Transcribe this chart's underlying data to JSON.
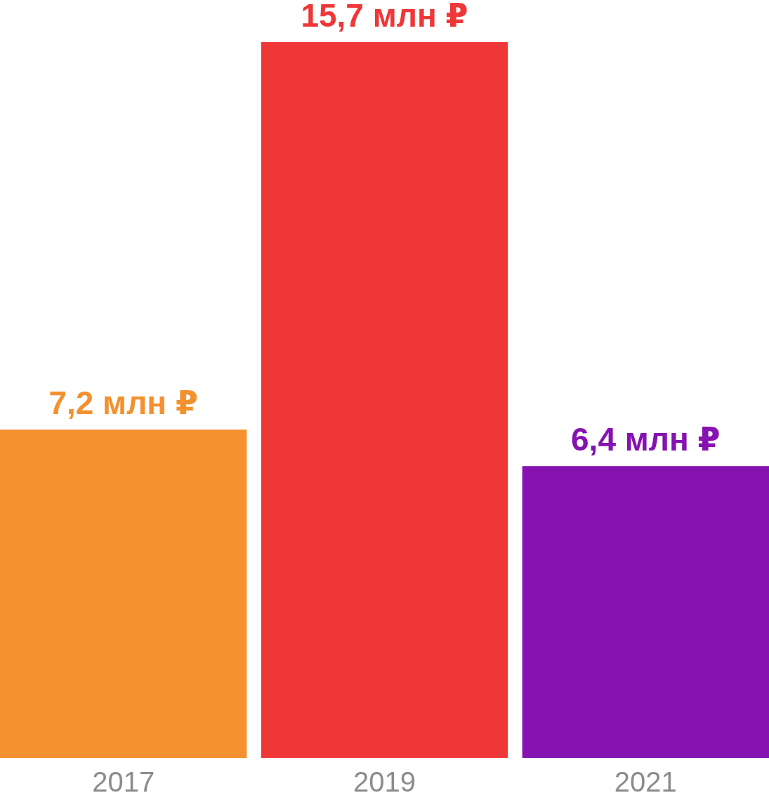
{
  "chart_data": {
    "type": "bar",
    "categories": [
      "2017",
      "2019",
      "2021"
    ],
    "values": [
      7.2,
      15.7,
      6.4
    ],
    "colors": [
      "#f4912f",
      "#ef3737",
      "#8612b1"
    ],
    "value_labels": [
      "7,2 млн ₽",
      "15,7 млн ₽",
      "6,4 млн ₽"
    ]
  }
}
